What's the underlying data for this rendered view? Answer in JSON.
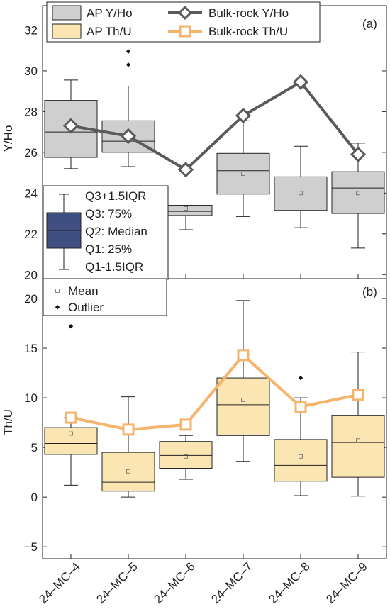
{
  "chart_data": [
    {
      "panel": "(a)",
      "type": "box",
      "ylabel": "Y/Ho",
      "ylim": [
        19.8,
        33.2
      ],
      "yticks": [
        20,
        22,
        24,
        26,
        28,
        30,
        32
      ],
      "categories": [
        "24-MC-4",
        "24-MC-5",
        "24-MC-6",
        "24-MC-7",
        "24-MC-8",
        "24-MC-9"
      ],
      "box_series": {
        "name": "AP Y/Ho",
        "fill": "#cfcfcf",
        "boxes": [
          {
            "wlo": 25.2,
            "q1": 25.75,
            "med": 27.0,
            "q3": 28.55,
            "whi": 29.55,
            "mean": 27.2,
            "outliers": []
          },
          {
            "wlo": 25.3,
            "q1": 26.0,
            "med": 26.55,
            "q3": 27.55,
            "whi": 29.25,
            "mean": 26.7,
            "outliers": [
              30.3,
              30.95
            ]
          },
          {
            "wlo": 22.2,
            "q1": 22.9,
            "med": 23.1,
            "q3": 23.4,
            "whi": 23.4,
            "mean": 23.25,
            "outliers": []
          },
          {
            "wlo": 22.85,
            "q1": 23.95,
            "med": 25.1,
            "q3": 25.95,
            "whi": 27.55,
            "mean": 24.95,
            "outliers": []
          },
          {
            "wlo": 22.3,
            "q1": 23.15,
            "med": 24.1,
            "q3": 24.8,
            "whi": 26.3,
            "mean": 24.0,
            "outliers": []
          },
          {
            "wlo": 21.3,
            "q1": 23.0,
            "med": 24.25,
            "q3": 25.05,
            "whi": 26.45,
            "mean": 24.0,
            "outliers": []
          }
        ]
      },
      "line_series": {
        "name": "Bulk-rock Y/Ho",
        "color": "#5a5a5a",
        "marker": "diamond",
        "values": [
          27.3,
          26.8,
          25.15,
          27.8,
          29.45,
          25.9
        ]
      },
      "legend_left": [
        "AP Y/Ho",
        "AP Th/U"
      ],
      "legend_right": [
        "Bulk-rock Y/Ho",
        "Bulk-rock Th/U"
      ],
      "box_legend": {
        "labels": [
          "Q3+1.5IQR",
          "Q3: 75%",
          "Q2: Median",
          "Q1: 25%",
          "Q1-1.5IQR"
        ],
        "fill": "#3f4f82"
      }
    },
    {
      "panel": "(b)",
      "type": "box",
      "ylabel": "Th/U",
      "ylim": [
        -6.2,
        22.0
      ],
      "yticks": [
        -5,
        0,
        5,
        10,
        15,
        20
      ],
      "categories": [
        "24-MC-4",
        "24-MC-5",
        "24-MC-6",
        "24-MC-7",
        "24-MC-8",
        "24-MC-9"
      ],
      "box_series": {
        "name": "AP Th/U",
        "fill": "#fbe6b3",
        "boxes": [
          {
            "wlo": 1.2,
            "q1": 4.3,
            "med": 5.4,
            "q3": 7.0,
            "whi": 8.0,
            "mean": 6.4,
            "outliers": [
              17.2
            ]
          },
          {
            "wlo": 0.0,
            "q1": 0.6,
            "med": 1.5,
            "q3": 4.5,
            "whi": 10.1,
            "mean": 2.6,
            "outliers": []
          },
          {
            "wlo": 1.8,
            "q1": 2.9,
            "med": 4.2,
            "q3": 5.6,
            "whi": 6.2,
            "mean": 4.1,
            "outliers": []
          },
          {
            "wlo": 3.6,
            "q1": 6.2,
            "med": 9.3,
            "q3": 12.0,
            "whi": 19.8,
            "mean": 9.8,
            "outliers": []
          },
          {
            "wlo": 0.15,
            "q1": 1.6,
            "med": 3.2,
            "q3": 5.8,
            "whi": 10.0,
            "mean": 4.1,
            "outliers": [
              12.0
            ]
          },
          {
            "wlo": 0.1,
            "q1": 2.0,
            "med": 5.5,
            "q3": 8.2,
            "whi": 14.6,
            "mean": 5.7,
            "outliers": []
          }
        ]
      },
      "line_series": {
        "name": "Bulk-rock Th/U",
        "color": "#f5b36b",
        "marker": "square",
        "values": [
          8.0,
          6.8,
          7.3,
          14.3,
          9.1,
          10.3
        ]
      },
      "legend": [
        "Mean",
        "Outlier"
      ]
    }
  ]
}
